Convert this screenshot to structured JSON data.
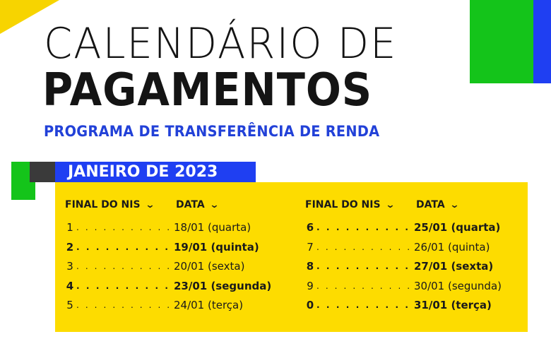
{
  "colors": {
    "yellow": "#fddc00",
    "green": "#14c41a",
    "blue": "#1f3ff2",
    "subtitle_blue": "#2241d8"
  },
  "title": {
    "line1": "CALENDÁRIO DE",
    "line2": "PAGAMENTOS"
  },
  "subtitle": "PROGRAMA DE TRANSFERÊNCIA DE RENDA",
  "month": "JANEIRO DE 2023",
  "headers": {
    "nis": "FINAL DO NIS",
    "date": "DATA",
    "icon": "chevron-down-icon"
  },
  "left_rows": [
    {
      "digit": "1",
      "date": "18/01 (quarta)",
      "bold": false
    },
    {
      "digit": "2",
      "date": "19/01 (quinta)",
      "bold": true
    },
    {
      "digit": "3",
      "date": "20/01 (sexta)",
      "bold": false
    },
    {
      "digit": "4",
      "date": "23/01 (segunda)",
      "bold": true
    },
    {
      "digit": "5",
      "date": "24/01 (terça)",
      "bold": false
    }
  ],
  "right_rows": [
    {
      "digit": "6",
      "date": "25/01 (quarta)",
      "bold": true
    },
    {
      "digit": "7",
      "date": "26/01 (quinta)",
      "bold": false
    },
    {
      "digit": "8",
      "date": "27/01 (sexta)",
      "bold": true
    },
    {
      "digit": "9",
      "date": "30/01 (segunda)",
      "bold": false
    },
    {
      "digit": "0",
      "date": "31/01 (terça)",
      "bold": true
    }
  ]
}
